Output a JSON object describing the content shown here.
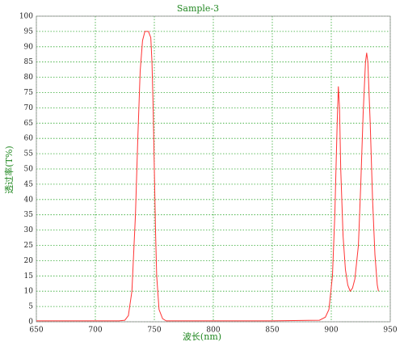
{
  "chart_data": {
    "type": "line",
    "title": "Sample-3",
    "x_label": "波长(nm)",
    "y_label": "透过率(T%)",
    "x": [
      650,
      700,
      720,
      725,
      728,
      731,
      734,
      736,
      738,
      740,
      742,
      745,
      747,
      748,
      749,
      750,
      751,
      752,
      754,
      757,
      760,
      800,
      850,
      890,
      895,
      898,
      901,
      903,
      905,
      906,
      907,
      908,
      910,
      912,
      914,
      916,
      918,
      920,
      923,
      925,
      927,
      929,
      930,
      931,
      933,
      935,
      937,
      939,
      940
    ],
    "values": [
      0.3,
      0.3,
      0.3,
      0.5,
      2,
      10,
      35,
      60,
      82,
      92,
      95,
      95,
      93,
      85,
      70,
      50,
      30,
      15,
      4,
      1,
      0.3,
      0.3,
      0.3,
      0.5,
      1.5,
      4,
      15,
      35,
      65,
      77,
      70,
      50,
      28,
      17,
      12,
      10,
      11,
      14,
      25,
      45,
      68,
      85,
      88,
      85,
      65,
      40,
      22,
      12,
      10
    ],
    "color": "#ff3333",
    "xlim": [
      650,
      950
    ],
    "xticks": [
      650,
      700,
      750,
      800,
      850,
      900,
      950
    ],
    "ylim": [
      0,
      100
    ],
    "yticks": [
      0,
      5,
      10,
      15,
      20,
      25,
      30,
      35,
      40,
      45,
      50,
      55,
      60,
      65,
      70,
      75,
      80,
      85,
      90,
      95,
      100
    ],
    "grid": true
  }
}
